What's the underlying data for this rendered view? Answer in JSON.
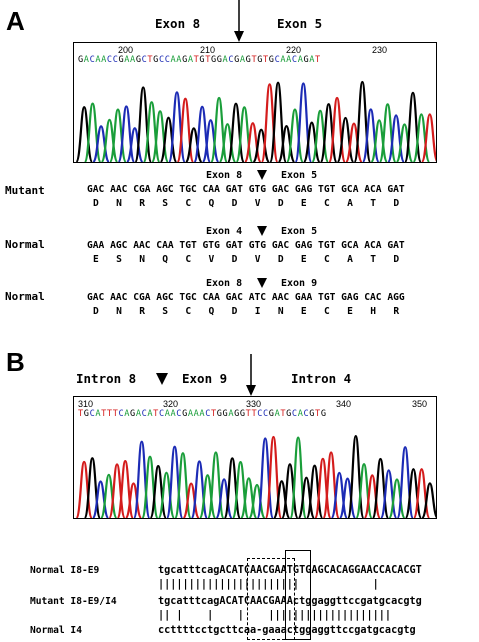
{
  "panel_a": {
    "letter": "A",
    "chrom_labels": {
      "left": "Exon 8",
      "right": "Exon 5"
    },
    "ticks": [
      "200",
      "210",
      "220",
      "230"
    ],
    "chrom_seq": "GACAACCGAAGCTGCCAAGATGTGGACGAGTGTGCAACAGAT",
    "rows": [
      {
        "name": "Mutant",
        "exon_left": "Exon 8",
        "exon_right": "Exon 5",
        "codons": "GAC AAC CGA AGC TGC CAA GAT GTG GAC GAG TGT GCA ACA GAT",
        "aa": "D   N   R   S   C   Q   D   V   D   E   C   A   T   D"
      },
      {
        "name": "Normal",
        "exon_left": "Exon 4",
        "exon_right": "Exon 5",
        "codons": "GAA AGC AAC CAA TGT GTG GAT GTG GAC GAG TGT GCA ACA GAT",
        "aa": "E   S   N   Q   C   V   D   V   D   E   C   A   T   D"
      },
      {
        "name": "Normal",
        "exon_left": "Exon 8",
        "exon_right": "Exon 9",
        "codons": "GAC AAC CGA AGC TGC CAA GAC ATC AAC GAA TGT GAG CAC AGG",
        "aa": "D   N   R   S   C   Q   D   I   N   E   C   E   H   R"
      }
    ]
  },
  "panel_b": {
    "letter": "B",
    "chrom_labels": {
      "left": "Intron 8",
      "middle": "Exon 9",
      "right": "Intron 4"
    },
    "ticks": [
      "310",
      "320",
      "330",
      "340",
      "350"
    ],
    "chrom_seq": "TGCATTTCAGACATCAACGAAACTGGAGGTTCCGATGCACGTG",
    "alignment": {
      "normal_i8e9_name": "Normal I8-E9",
      "normal_i8e9_seq": "tgcatttcagACATCAACGAATGTGAGCACAGGAACCACACGT",
      "bars1": "|||||||||||||||||||||||            |",
      "mutant_name": "Mutant I8-E9/I4",
      "mutant_seq": "tgcatttcagACATCAACGAAActggaggttccgatgcacgtg",
      "bars2": "|| |    |    |    ||||||||||||||||||||",
      "normal_i4_name": "Normal I4",
      "normal_i4_seq": "ccttttcctgcttcaa-gaaactggaggttccgatgcacgtg"
    }
  },
  "colors": {
    "A": "#1a9e3a",
    "C": "#1c2bb5",
    "G": "#000000",
    "T": "#d41c1c"
  }
}
